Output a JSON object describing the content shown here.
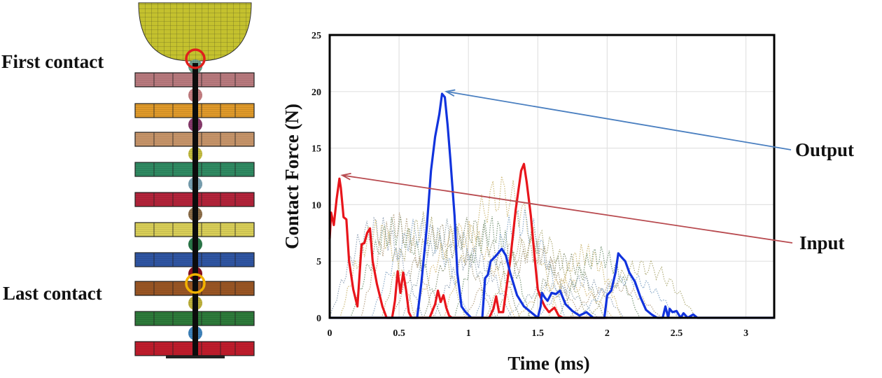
{
  "figure": {
    "first_contact_label": "First contact",
    "last_contact_label": "Last contact",
    "output_label": "Output",
    "input_label": "Input",
    "plate_colors": [
      "#b97a7e",
      "#e09a2a",
      "#c7956a",
      "#2f8a62",
      "#b3233a",
      "#d9cf58",
      "#2f55a3",
      "#9a5624",
      "#2d7a3a",
      "#c01d2c"
    ],
    "ball_colors": [
      "#6f9e8c",
      "#c98184",
      "#8a3a6e",
      "#c7bf3f",
      "#7aa3b5",
      "#8f6f4a",
      "#2b7a4a",
      "#8c1020",
      "#c2b43a",
      "#3f86c0"
    ],
    "impactor_color": "#c4c12e",
    "first_contact_marker_color": "#e0201c",
    "last_contact_marker_color": "#f2b300"
  },
  "chart_data": {
    "type": "line",
    "title": "",
    "xlabel": "Time (ms)",
    "ylabel": "Contact Force (N)",
    "xlim": [
      0,
      3.2
    ],
    "ylim": [
      0,
      25
    ],
    "xticks": [
      "0",
      "0.5",
      "1",
      "1.5",
      "2",
      "2.5",
      "3"
    ],
    "xtick_values": [
      0,
      0.5,
      1,
      1.5,
      2,
      2.5,
      3
    ],
    "yticks": [
      "0",
      "5",
      "10",
      "15",
      "20",
      "25"
    ],
    "ytick_values": [
      0,
      5,
      10,
      15,
      20,
      25
    ],
    "grid": true,
    "series": [
      {
        "name": "Input",
        "color": "#e8151b",
        "style": "solid",
        "x": [
          0,
          0.01,
          0.03,
          0.05,
          0.07,
          0.08,
          0.1,
          0.12,
          0.14,
          0.17,
          0.2,
          0.23,
          0.25,
          0.27,
          0.29,
          0.31,
          0.34,
          0.38,
          0.41,
          0.45,
          0.47,
          0.49,
          0.51,
          0.53,
          0.55,
          0.57,
          0.59,
          0.62,
          0.65,
          0.72,
          0.76,
          0.78,
          0.8,
          0.82,
          0.84,
          0.86,
          0.88,
          0.91,
          1.0,
          1.15,
          1.18,
          1.2,
          1.22,
          1.25,
          1.3,
          1.34,
          1.38,
          1.4,
          1.42,
          1.45,
          1.48,
          1.5,
          1.52,
          1.55,
          1.58,
          1.62,
          1.65,
          1.68,
          2.0
        ],
        "y": [
          7,
          9.3,
          8.2,
          10.5,
          12.3,
          11.5,
          8.9,
          8.7,
          5,
          2.5,
          1,
          6.5,
          6.6,
          7.5,
          7.9,
          5,
          3,
          1,
          0,
          0,
          1.5,
          4.1,
          2.2,
          4,
          2.5,
          0.5,
          0,
          0,
          0,
          0,
          1.2,
          2.4,
          1.4,
          2,
          0.9,
          0.2,
          0,
          0,
          0,
          0,
          0.8,
          1.9,
          0.5,
          0.5,
          5,
          9.5,
          13,
          13.6,
          12,
          9,
          5,
          2.5,
          1.8,
          1,
          0.5,
          0.9,
          0.2,
          0,
          0
        ]
      },
      {
        "name": "Output",
        "color": "#1133dd",
        "style": "solid",
        "x": [
          0,
          0.6,
          0.63,
          0.66,
          0.7,
          0.73,
          0.76,
          0.79,
          0.81,
          0.83,
          0.85,
          0.87,
          0.9,
          0.92,
          0.95,
          0.98,
          1.02,
          1.06,
          1.1,
          1.12,
          1.14,
          1.16,
          1.2,
          1.24,
          1.27,
          1.3,
          1.35,
          1.4,
          1.45,
          1.5,
          1.52,
          1.53,
          1.55,
          1.57,
          1.6,
          1.63,
          1.66,
          1.7,
          1.75,
          1.8,
          1.85,
          1.9,
          1.95,
          1.98,
          2.0,
          2.03,
          2.06,
          2.08,
          2.1,
          2.13,
          2.16,
          2.2,
          2.24,
          2.28,
          2.32,
          2.36,
          2.4,
          2.42,
          2.44,
          2.45,
          2.47,
          2.5,
          2.53,
          2.55,
          2.58,
          2.62,
          2.65,
          3.2
        ],
        "y": [
          0,
          0,
          0,
          3,
          8,
          13,
          16,
          18,
          19.8,
          19.5,
          17,
          14,
          9,
          4,
          1,
          0.5,
          0,
          0,
          0,
          3.5,
          3.8,
          5,
          5.5,
          6.1,
          5.5,
          4,
          2,
          1,
          0.5,
          0,
          1,
          2.2,
          1.8,
          1.5,
          2.2,
          2.1,
          2.4,
          1.2,
          0.6,
          0.2,
          0.5,
          0,
          0,
          0,
          2,
          2.4,
          4,
          5.7,
          5.4,
          5,
          4,
          3.2,
          1.8,
          0.7,
          0.3,
          0,
          0,
          1,
          0,
          0.8,
          0.5,
          0.6,
          0,
          0.4,
          0,
          0.3,
          0,
          0
        ]
      }
    ],
    "annotations": [
      {
        "text": "Output",
        "points_to": [
          0.82,
          20
        ],
        "color": "#4a7fc0"
      },
      {
        "text": "Input",
        "points_to": [
          0.07,
          12.6
        ],
        "color": "#b84a4f"
      }
    ]
  }
}
